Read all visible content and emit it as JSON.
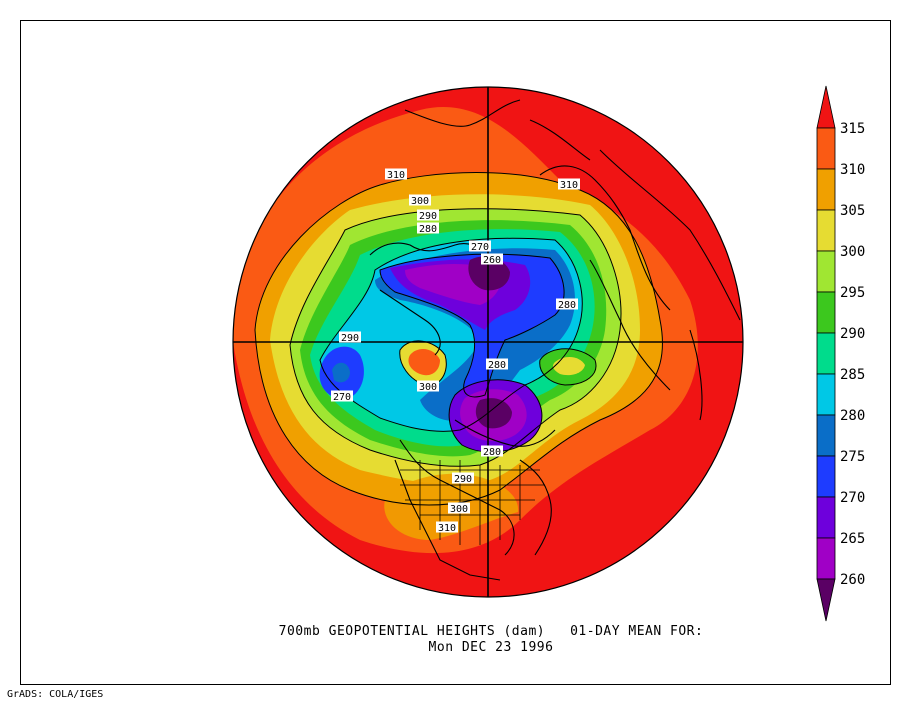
{
  "title": {
    "line1": "700mb GEOPOTENTIAL HEIGHTS (dam)   01-DAY MEAN FOR:",
    "line2": "Mon DEC 23 1996"
  },
  "credit": "GrADS: COLA/IGES",
  "colorbar": {
    "levels": [
      {
        "label": "260",
        "color": "#8a0089"
      },
      {
        "label": "265",
        "color": "#a000c6"
      },
      {
        "label": "270",
        "color": "#6e00dc"
      },
      {
        "label": "275",
        "color": "#1e3cff"
      },
      {
        "label": "280",
        "color": "#0a6ec8"
      },
      {
        "label": "285",
        "color": "#00c8e6"
      },
      {
        "label": "290",
        "color": "#00dc8c"
      },
      {
        "label": "295",
        "color": "#3cc81e"
      },
      {
        "label": "300",
        "color": "#a0e632"
      },
      {
        "label": "305",
        "color": "#e6dc32"
      },
      {
        "label": "310",
        "color": "#f0a000"
      },
      {
        "label": "315",
        "color": "#fa5a14"
      }
    ],
    "bottom_color": "#5a0064",
    "top_color": "#f01414"
  },
  "contour_labels": [
    "310",
    "310",
    "300",
    "290",
    "280",
    "270",
    "260",
    "280",
    "290",
    "280",
    "270",
    "300",
    "280",
    "290",
    "300",
    "310"
  ]
}
